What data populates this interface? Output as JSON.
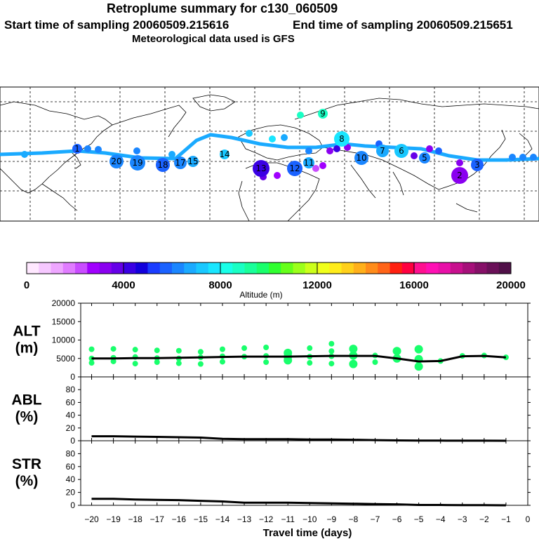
{
  "header": {
    "title": "Retroplume summary for c130_060509",
    "start": "Start time of sampling 20060509.215616",
    "end": "End time of sampling 20060509.215651",
    "met": "Meteorological data used is GFS"
  },
  "colorbar": {
    "ticks": [
      "0",
      "4000",
      "8000",
      "12000",
      "16000",
      "20000"
    ],
    "label": "Altitude (m)",
    "colors": [
      "#ffe8ff",
      "#f6c8ff",
      "#eea6ff",
      "#e07cff",
      "#c94cff",
      "#a100ff",
      "#8a00f0",
      "#6600e8",
      "#3a00e4",
      "#1200dc",
      "#1a3cff",
      "#1a62ff",
      "#1a86ff",
      "#1aaaff",
      "#19c8ff",
      "#19e6ff",
      "#19ffe8",
      "#19ffc4",
      "#19ff9a",
      "#19ff6c",
      "#30ff30",
      "#66ff1a",
      "#9cff1a",
      "#ccff1a",
      "#f0ff1a",
      "#ffec1a",
      "#ffd01a",
      "#ffb01a",
      "#ff8c1a",
      "#ff6418",
      "#ff2010",
      "#ff0040",
      "#ff1090",
      "#ff10b4",
      "#e810a8",
      "#c8108e",
      "#a6107a",
      "#861068",
      "#6a1058",
      "#501048"
    ]
  },
  "map": {
    "track_color": "#1aaaff",
    "markers": [
      {
        "label": "20",
        "color": "#1a86ff"
      },
      {
        "label": "19",
        "color": "#1a86ff"
      },
      {
        "label": "18",
        "color": "#1a62ff"
      },
      {
        "label": "17",
        "color": "#1a86ff"
      },
      {
        "label": "15",
        "color": "#1aaaff"
      },
      {
        "label": "14",
        "color": "#19c8ff"
      },
      {
        "label": "13",
        "color": "#3a00e4"
      },
      {
        "label": "12",
        "color": "#1a62ff"
      },
      {
        "label": "11",
        "color": "#1aaaff"
      },
      {
        "label": "10",
        "color": "#1a86ff"
      },
      {
        "label": "9",
        "color": "#19ffc4"
      },
      {
        "label": "8",
        "color": "#19e6ff"
      },
      {
        "label": "7",
        "color": "#1aaaff"
      },
      {
        "label": "6",
        "color": "#19c8ff"
      },
      {
        "label": "5",
        "color": "#1a86ff"
      },
      {
        "label": "3",
        "color": "#1a62ff"
      },
      {
        "label": "2",
        "color": "#8a00f0"
      },
      {
        "label": "1",
        "color": "#1a62ff"
      }
    ]
  },
  "chart_data": [
    {
      "type": "scatter",
      "name": "ALT",
      "ylabel": "ALT (m)",
      "ylabel_lines": [
        "ALT",
        "(m)"
      ],
      "ylim": [
        0,
        20000
      ],
      "yticks": [
        0,
        5000,
        10000,
        15000,
        20000
      ],
      "ytick_labels": [
        "0",
        "5000",
        "10000",
        "15000",
        "20000"
      ],
      "points_color": "#19ff6c",
      "median": {
        "x": [
          -20,
          -19,
          -18,
          -17,
          -16,
          -15,
          -14,
          -13,
          -12,
          -11,
          -10,
          -9,
          -8,
          -7,
          -6,
          -5,
          -4,
          -3,
          -2,
          -1
        ],
        "y": [
          5000,
          5000,
          5100,
          5100,
          5200,
          5300,
          5400,
          5500,
          5500,
          5500,
          5600,
          5700,
          5700,
          5700,
          5000,
          4200,
          4300,
          5600,
          5700,
          5300
        ]
      },
      "points": [
        {
          "x": -20,
          "y": 5000
        },
        {
          "x": -20,
          "y": 3800
        },
        {
          "x": -20,
          "y": 7500
        },
        {
          "x": -19,
          "y": 5200
        },
        {
          "x": -19,
          "y": 4200
        },
        {
          "x": -19,
          "y": 7600
        },
        {
          "x": -18,
          "y": 5400
        },
        {
          "x": -18,
          "y": 3600
        },
        {
          "x": -18,
          "y": 7400
        },
        {
          "x": -17,
          "y": 5100
        },
        {
          "x": -17,
          "y": 4000
        },
        {
          "x": -17,
          "y": 7200
        },
        {
          "x": -16,
          "y": 5000
        },
        {
          "x": -16,
          "y": 3700
        },
        {
          "x": -16,
          "y": 7100
        },
        {
          "x": -15,
          "y": 5300
        },
        {
          "x": -15,
          "y": 3500
        },
        {
          "x": -15,
          "y": 6800
        },
        {
          "x": -14,
          "y": 5600
        },
        {
          "x": -14,
          "y": 4100
        },
        {
          "x": -14,
          "y": 7500
        },
        {
          "x": -13,
          "y": 5500
        },
        {
          "x": -13,
          "y": 7800
        },
        {
          "x": -12,
          "y": 5700
        },
        {
          "x": -12,
          "y": 4000
        },
        {
          "x": -12,
          "y": 8000
        },
        {
          "x": -11,
          "y": 5500
        },
        {
          "x": -11,
          "y": 4500
        },
        {
          "x": -11,
          "y": 6500
        },
        {
          "x": -10,
          "y": 5500
        },
        {
          "x": -10,
          "y": 3800
        },
        {
          "x": -10,
          "y": 7800
        },
        {
          "x": -9,
          "y": 5600
        },
        {
          "x": -9,
          "y": 3600
        },
        {
          "x": -9,
          "y": 9000
        },
        {
          "x": -9,
          "y": 7000
        },
        {
          "x": -8,
          "y": 5800
        },
        {
          "x": -8,
          "y": 3500
        },
        {
          "x": -8,
          "y": 7600
        },
        {
          "x": -7,
          "y": 5800
        },
        {
          "x": -7,
          "y": 4000
        },
        {
          "x": -6,
          "y": 5000
        },
        {
          "x": -6,
          "y": 7000
        },
        {
          "x": -5,
          "y": 2800
        },
        {
          "x": -5,
          "y": 4800
        },
        {
          "x": -5,
          "y": 7500
        },
        {
          "x": -4,
          "y": 4300
        },
        {
          "x": -3,
          "y": 5700
        },
        {
          "x": -2,
          "y": 5800
        },
        {
          "x": -1,
          "y": 5300
        }
      ]
    },
    {
      "type": "line",
      "name": "ABL",
      "ylabel": "ABL (%)",
      "ylabel_lines": [
        "ABL",
        "(%)"
      ],
      "ylim": [
        0,
        100
      ],
      "yticks": [
        0,
        20,
        40,
        60,
        80
      ],
      "ytick_labels": [
        "0",
        "20",
        "40",
        "60",
        "80"
      ],
      "x": [
        -20,
        -19,
        -18,
        -17,
        -16,
        -15,
        -14,
        -13,
        -12,
        -11,
        -10,
        -9,
        -8,
        -7,
        -6,
        -5,
        -4,
        -3,
        -2,
        -1
      ],
      "y": [
        7,
        7,
        6.5,
        6,
        5.5,
        5,
        3,
        2.5,
        2.5,
        2.5,
        2,
        2,
        1.5,
        1,
        0.5,
        0.3,
        0.2,
        0.1,
        0.1,
        0
      ]
    },
    {
      "type": "line",
      "name": "STR",
      "ylabel": "STR (%)",
      "ylabel_lines": [
        "STR",
        "(%)"
      ],
      "ylim": [
        0,
        100
      ],
      "yticks": [
        0,
        20,
        40,
        60,
        80
      ],
      "ytick_labels": [
        "0",
        "20",
        "40",
        "60",
        "80"
      ],
      "x": [
        -20,
        -19,
        -18,
        -17,
        -16,
        -15,
        -14,
        -13,
        -12,
        -11,
        -10,
        -9,
        -8,
        -7,
        -6,
        -5,
        -4,
        -3,
        -2,
        -1
      ],
      "y": [
        10,
        10,
        9,
        8.5,
        8,
        7,
        6,
        4,
        4,
        4,
        3.5,
        3,
        2.5,
        2,
        1.5,
        0.5,
        0.5,
        0.2,
        0.2,
        0
      ]
    }
  ],
  "xaxis": {
    "label": "Travel time (days)",
    "ticks": [
      -20,
      -19,
      -18,
      -17,
      -16,
      -15,
      -14,
      -13,
      -12,
      -11,
      -10,
      -9,
      -8,
      -7,
      -6,
      -5,
      -4,
      -3,
      -2,
      -1,
      0
    ],
    "tick_labels": [
      "−20",
      "−19",
      "−18",
      "−17",
      "−16",
      "−15",
      "−14",
      "−13",
      "−12",
      "−11",
      "−10",
      "−9",
      "−8",
      "−7",
      "−6",
      "−5",
      "−4",
      "−3",
      "−2",
      "−1",
      "0"
    ]
  }
}
